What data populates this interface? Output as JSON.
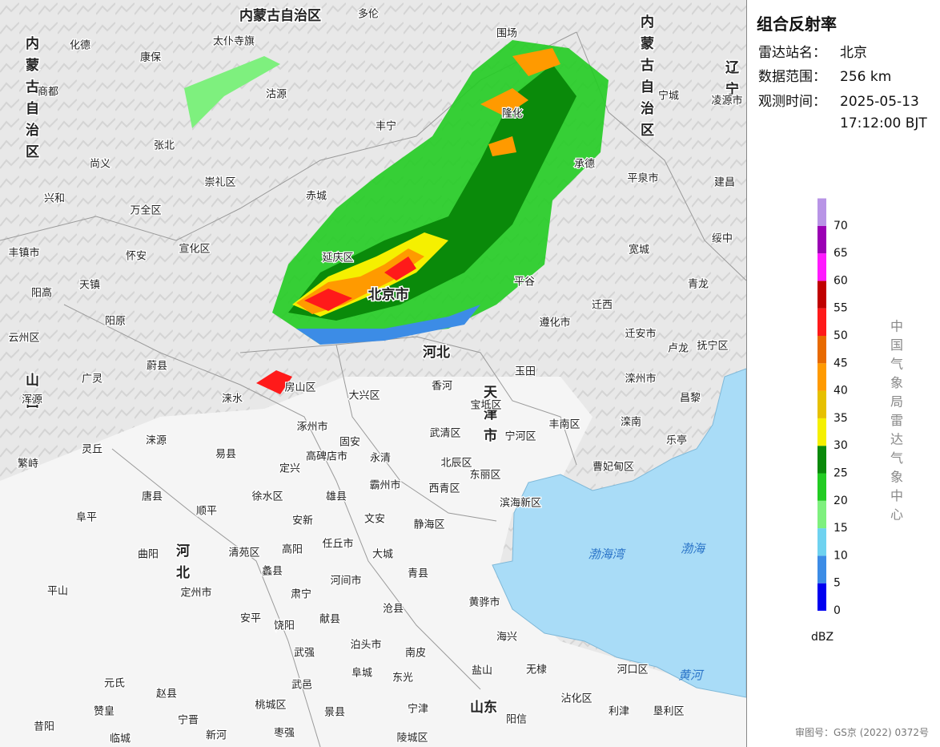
{
  "panel": {
    "title": "组合反射率",
    "info": [
      {
        "label": "雷达站名：",
        "value": "北京"
      },
      {
        "label": "数据范围：",
        "value": "256 km"
      },
      {
        "label": "观测时间：",
        "value": "2025-05-13 17:12:00 BJT"
      }
    ],
    "legend": {
      "ticks": [
        0,
        5,
        10,
        15,
        20,
        25,
        30,
        35,
        40,
        45,
        50,
        55,
        60,
        65,
        70
      ],
      "colors": [
        "#0000f0",
        "#3c8ce6",
        "#6ed2f0",
        "#7ef07e",
        "#22cc22",
        "#0a8a0a",
        "#f5f000",
        "#e6c000",
        "#ff9a00",
        "#e86a00",
        "#ff1a1a",
        "#c00000",
        "#ff1aff",
        "#9a00b4",
        "#b894e6"
      ],
      "unit": "dBZ"
    },
    "source": "中国气象局雷达气象中心",
    "footer": "审图号：GS京 (2022) 0372号"
  },
  "map": {
    "regions": [
      "内蒙古自治区",
      "内蒙古自治区",
      "内蒙古自治区",
      "河北",
      "北京市",
      "天津市",
      "辽宁",
      "山西",
      "河北",
      "山东"
    ],
    "water": [
      "渤海湾",
      "渤海",
      "黄河"
    ],
    "places": [
      "多伦",
      "化德",
      "太仆寺旗",
      "康保",
      "商都",
      "沽源",
      "丰宁",
      "张北",
      "尚义",
      "崇礼区",
      "赤城",
      "兴和",
      "万全区",
      "宣化区",
      "丰镇市",
      "怀安",
      "延庆区",
      "天镇",
      "阳高",
      "阳原",
      "云州区",
      "蔚县",
      "广灵",
      "浑源",
      "涞水",
      "房山区",
      "大兴区",
      "涿州市",
      "涞源",
      "灵丘",
      "易县",
      "繁峙",
      "定兴",
      "高碑店市",
      "固安",
      "永清",
      "武清区",
      "宝坻区",
      "玉田",
      "遵化市",
      "迁西",
      "宽城",
      "平泉市",
      "承德",
      "青龙",
      "迁安市",
      "卢龙",
      "抚宁区",
      "滦州市",
      "昌黎",
      "滦南",
      "乐亭",
      "曹妃甸区",
      "丰南区",
      "宁河区",
      "唐县",
      "阜平",
      "顺平",
      "徐水区",
      "雄县",
      "霸州市",
      "安新",
      "文安",
      "静海区",
      "清苑区",
      "高阳",
      "任丘市",
      "大城",
      "曲阳",
      "蠡县",
      "河间市",
      "青县",
      "黄骅市",
      "定州市",
      "平山",
      "肃宁",
      "献县",
      "沧县",
      "安平",
      "饶阳",
      "海兴",
      "泊头市",
      "南皮",
      "武强",
      "盐山",
      "无棣",
      "河口区",
      "阜城",
      "东光",
      "武邑",
      "元氏",
      "赵县",
      "沾化区",
      "利津",
      "垦利区",
      "景县",
      "宁津",
      "阳信",
      "宁晋",
      "枣强",
      "昔阳",
      "桃城区",
      "新河",
      "临城",
      "赞皇",
      "陵城区",
      "围场",
      "隆化",
      "宁城",
      "凌源市",
      "建昌",
      "绥中",
      "香河",
      "北辰区",
      "东丽区",
      "滨海新区",
      "西青区",
      "平谷"
    ]
  }
}
